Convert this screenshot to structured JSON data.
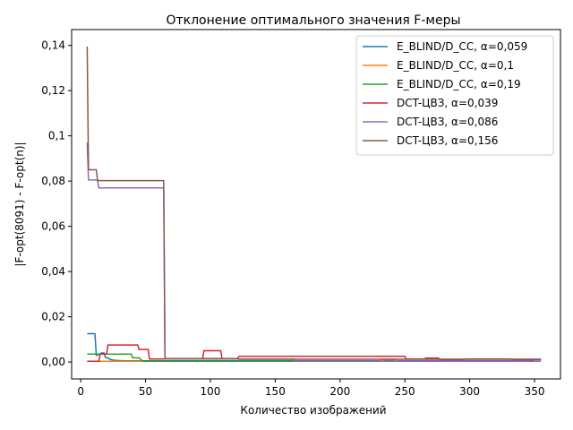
{
  "chart_data": {
    "type": "line",
    "title": "Отклонение оптимального значения F-меры",
    "xlabel": "Количество изображений",
    "ylabel": "|F-opt(8091) - F-opt(n)|",
    "xlim": [
      -7,
      370
    ],
    "ylim": [
      -0.0075,
      0.147
    ],
    "xticks": [
      0,
      50,
      100,
      150,
      200,
      250,
      300,
      350
    ],
    "xtick_labels": [
      "0",
      "50",
      "100",
      "150",
      "200",
      "250",
      "300",
      "350"
    ],
    "yticks": [
      0,
      0.02,
      0.04,
      0.06,
      0.08,
      0.1,
      0.12,
      0.14
    ],
    "ytick_labels": [
      "0,00",
      "0,02",
      "0,04",
      "0,06",
      "0,08",
      "0,1",
      "0,12",
      "0,14"
    ],
    "legend_position": "top-right",
    "grid": false,
    "series": [
      {
        "name": "E_BLIND/D_CC, α=0,059",
        "color": "#1f77b4",
        "x": [
          5,
          6,
          7,
          8,
          9,
          10,
          11,
          12,
          13,
          14,
          15,
          16,
          17,
          18,
          19,
          20,
          21,
          22,
          23,
          24,
          25,
          30,
          35,
          40,
          60,
          100,
          150,
          200,
          250,
          300,
          350
        ],
        "y": [
          0.0125,
          0.0125,
          0.0125,
          0.0125,
          0.0125,
          0.0125,
          0.0125,
          0.003,
          0.003,
          0.0035,
          0.0035,
          0.004,
          0.004,
          0.004,
          0.002,
          0.002,
          0.0015,
          0.0015,
          0.001,
          0.001,
          0.0008,
          0.0006,
          0.0005,
          0.0005,
          0.0005,
          0.0005,
          0.0005,
          0.0005,
          0.0005,
          0.0005,
          0.0005
        ]
      },
      {
        "name": "E_BLIND/D_CC, α=0,1",
        "color": "#ff7f0e",
        "x": [
          5,
          25,
          50,
          100,
          150,
          200,
          230,
          235,
          240,
          245,
          250,
          300,
          350
        ],
        "y": [
          0.0003,
          0.0003,
          0.0003,
          0.0003,
          0.0003,
          0.0003,
          0.0003,
          0.0012,
          0.0012,
          0.0003,
          0.0003,
          0.0003,
          0.0003
        ]
      },
      {
        "name": "E_BLIND/D_CC, α=0,19",
        "color": "#2ca02c",
        "x": [
          5,
          10,
          15,
          20,
          25,
          30,
          35,
          39,
          40,
          44,
          45,
          48,
          50,
          100,
          150,
          200,
          250,
          300,
          350
        ],
        "y": [
          0.0035,
          0.0035,
          0.0035,
          0.0035,
          0.0035,
          0.0035,
          0.0035,
          0.0035,
          0.0018,
          0.0018,
          0.0018,
          0.0003,
          0.0003,
          0.0003,
          0.0003,
          0.0003,
          0.0003,
          0.0003,
          0.0003
        ]
      },
      {
        "name": "DCT-ЦВЗ, α=0,039",
        "color": "#d62728",
        "x": [
          5,
          14,
          15,
          20,
          21,
          44,
          45,
          52,
          53,
          94,
          95,
          108,
          109,
          121,
          122,
          250,
          251,
          265,
          266,
          276,
          277,
          295,
          296,
          332,
          333,
          355
        ],
        "y": [
          0.0003,
          0.0003,
          0.0035,
          0.0035,
          0.0075,
          0.0075,
          0.0055,
          0.0055,
          0.0013,
          0.0013,
          0.005,
          0.005,
          0.0013,
          0.0013,
          0.0025,
          0.0025,
          0.0013,
          0.0013,
          0.0017,
          0.0017,
          0.001,
          0.001,
          0.0013,
          0.0013,
          0.001,
          0.001
        ]
      },
      {
        "name": "DCT-ЦВЗ, α=0,086",
        "color": "#9467bd",
        "x": [
          5,
          6,
          13,
          14,
          63,
          64,
          65,
          164,
          165,
          355
        ],
        "y": [
          0.097,
          0.0805,
          0.0805,
          0.077,
          0.077,
          0.077,
          0.0013,
          0.0013,
          0.0003,
          0.0003
        ]
      },
      {
        "name": "DCT-ЦВЗ, α=0,156",
        "color": "#8c564b",
        "x": [
          5,
          6,
          12,
          13,
          63,
          64,
          65,
          121,
          122,
          355
        ],
        "y": [
          0.1395,
          0.085,
          0.085,
          0.0802,
          0.0802,
          0.0802,
          0.0015,
          0.0015,
          0.0012,
          0.0012
        ]
      }
    ]
  }
}
